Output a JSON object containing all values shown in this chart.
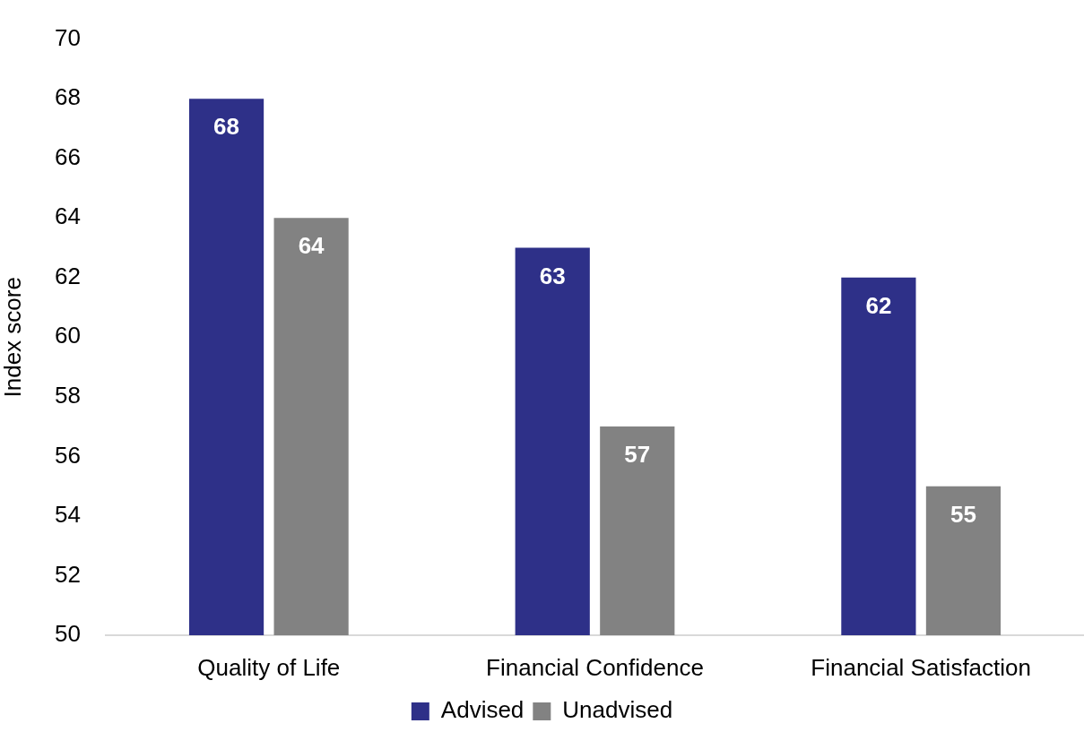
{
  "chart_data": {
    "type": "bar",
    "ylabel": "Index score",
    "categories": [
      "Quality of Life",
      "Financial Confidence",
      "Financial Satisfaction"
    ],
    "series": [
      {
        "name": "Advised",
        "color": "#2e3088",
        "values": [
          68,
          63,
          62
        ]
      },
      {
        "name": "Unadvised",
        "color": "#828282",
        "values": [
          64,
          57,
          55
        ]
      }
    ],
    "ylim": [
      50,
      70
    ],
    "yticks": [
      50,
      52,
      54,
      56,
      58,
      60,
      62,
      64,
      66,
      68,
      70
    ],
    "grid": false,
    "legend": "bottom",
    "data_labels": true
  }
}
